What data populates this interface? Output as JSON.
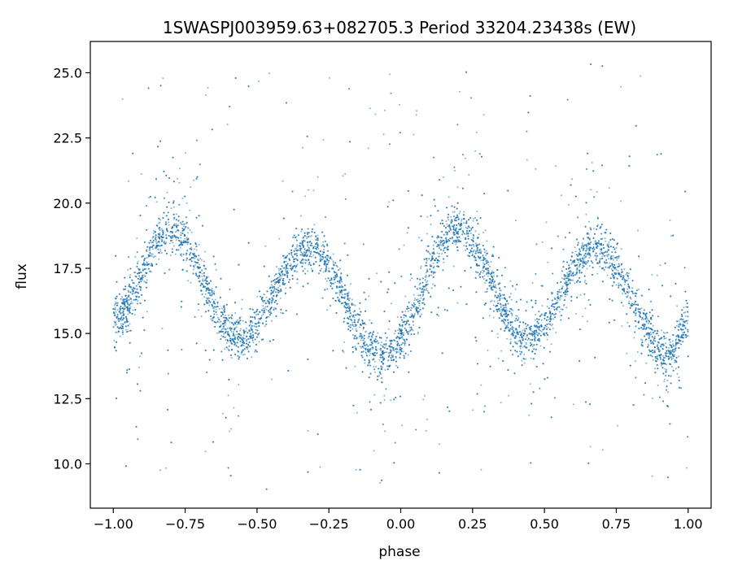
{
  "chart_data": {
    "type": "scatter",
    "title": "1SWASPJ003959.63+082705.3 Period 33204.23438s (EW)",
    "xlabel": "phase",
    "ylabel": "flux",
    "xlim": [
      -1.08,
      1.08
    ],
    "ylim": [
      8.3,
      26.2
    ],
    "xticks": [
      -1.0,
      -0.75,
      -0.5,
      -0.25,
      0.0,
      0.25,
      0.5,
      0.75,
      1.0
    ],
    "xtick_labels": [
      "−1.00",
      "−0.75",
      "−0.50",
      "−0.25",
      "0.00",
      "0.25",
      "0.50",
      "0.75",
      "1.00"
    ],
    "yticks": [
      10.0,
      12.5,
      15.0,
      17.5,
      20.0,
      22.5,
      25.0
    ],
    "ytick_labels": [
      "10.0",
      "12.5",
      "15.0",
      "17.5",
      "20.0",
      "22.5",
      "25.0"
    ],
    "grid": false,
    "marker_color": "#1f77b4",
    "series": [
      {
        "curve_phase": [
          -1.0,
          -0.8,
          -0.56,
          -0.32,
          -0.06,
          0.2,
          0.44,
          0.68,
          0.94,
          1.0
        ],
        "curve_flux": [
          15.6,
          19.0,
          14.8,
          18.3,
          14.1,
          19.0,
          14.8,
          18.3,
          14.1,
          15.6
        ]
      }
    ]
  }
}
